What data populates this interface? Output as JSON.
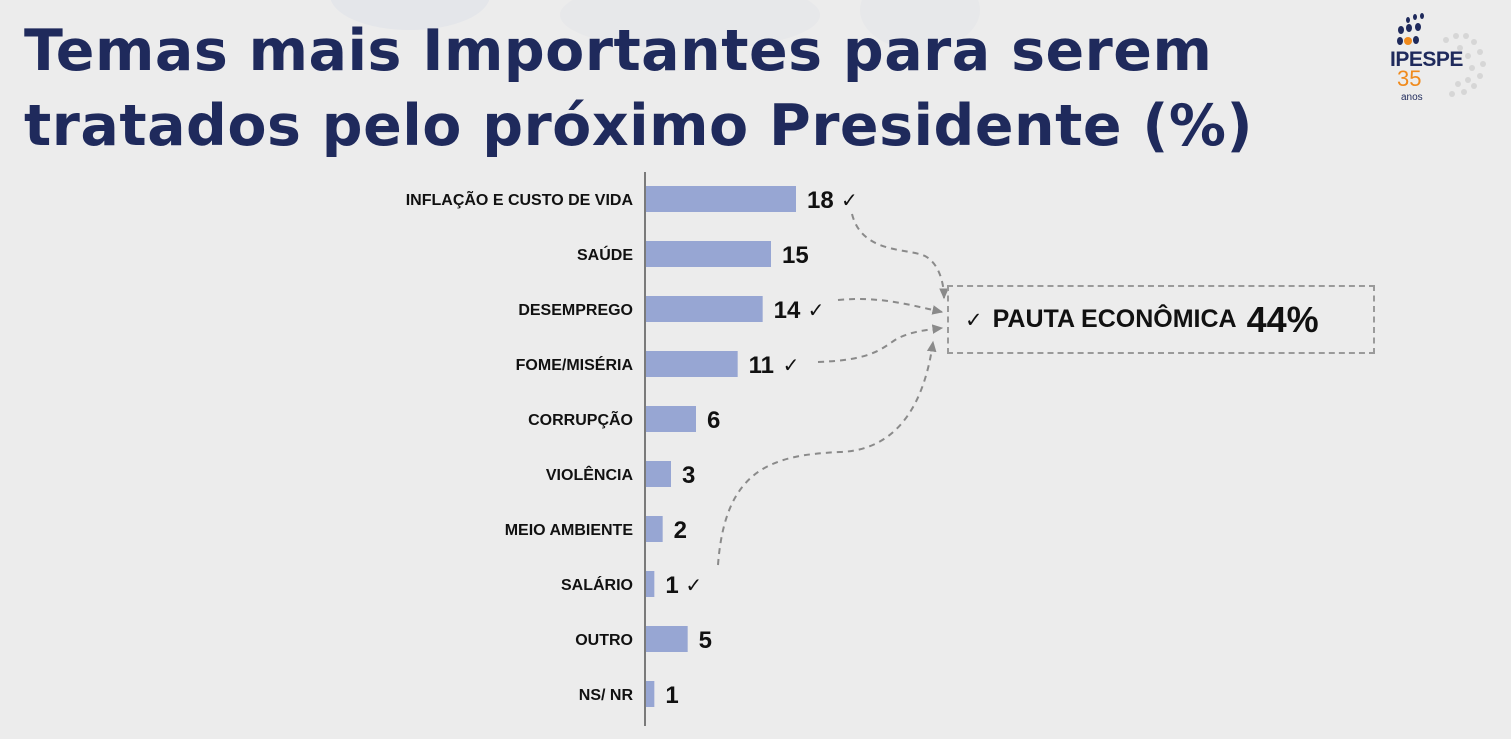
{
  "header": {
    "title_line1": "Temas mais Importantes para serem",
    "title_line2": "tratados pelo próximo Presidente (%)"
  },
  "logo": {
    "brand": "IPESPE",
    "years": "35",
    "years_label": "anos",
    "colors": {
      "brand": "#1f2a5c",
      "accent": "#f08a1c"
    }
  },
  "callout": {
    "check": "✓",
    "label": "PAUTA ECONÔMICA",
    "value": "44%"
  },
  "colors": {
    "bar": "#97a6d3",
    "title": "#1f2a5c",
    "text": "#111111",
    "connector": "#8a8a8a",
    "background": "#ececec"
  },
  "chart_data": {
    "type": "bar",
    "orientation": "horizontal",
    "title": "Temas mais Importantes para serem tratados pelo próximo Presidente (%)",
    "categories": [
      "INFLAÇÃO E CUSTO DE VIDA",
      "SAÚDE",
      "DESEMPREGO",
      "FOME/MISÉRIA",
      "CORRUPÇÃO",
      "VIOLÊNCIA",
      "MEIO AMBIENTE",
      "SALÁRIO",
      "OUTRO",
      "NS/ NR"
    ],
    "values": [
      18,
      15,
      14,
      11,
      6,
      3,
      2,
      1,
      5,
      1
    ],
    "economic_agenda": [
      true,
      false,
      true,
      true,
      false,
      false,
      false,
      true,
      false,
      false
    ],
    "check_mark": "✓",
    "xlim": [
      0,
      18
    ],
    "grid": false,
    "legend": "none",
    "data_labels": true
  }
}
